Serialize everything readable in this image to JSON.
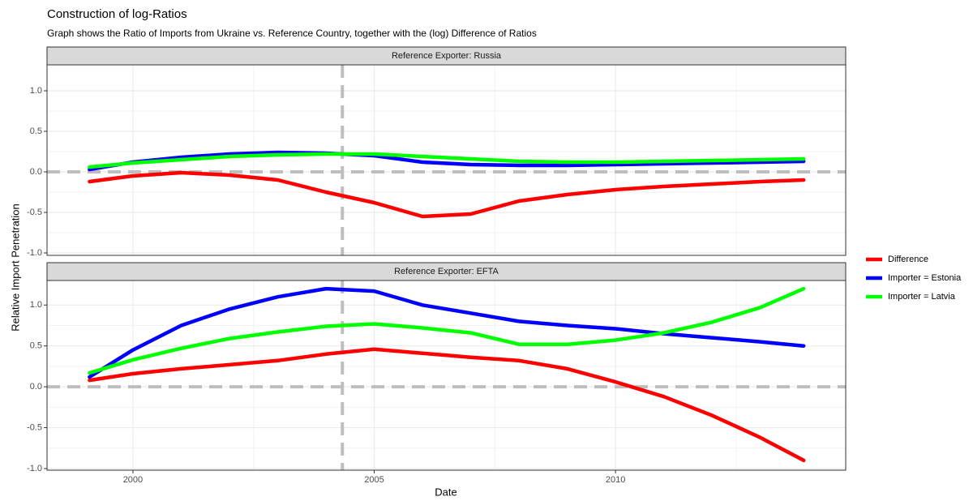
{
  "title": "Construction of log-Ratios",
  "subtitle": "Graph shows the Ratio of Imports from Ukraine vs. Reference Country, together with the (log) Difference of Ratios",
  "x_label": "Date",
  "y_label": "Relative Import Penetration",
  "chart_data": [
    {
      "type": "line",
      "strip": "Reference Exporter: Russia",
      "x": [
        1999.1,
        2000,
        2001,
        2002,
        2003,
        2004,
        2005,
        2006,
        2007,
        2008,
        2009,
        2010,
        2011,
        2012,
        2013,
        2013.9
      ],
      "series": [
        {
          "name": "Difference",
          "color": "#ff0000",
          "values": [
            -0.12,
            -0.05,
            -0.01,
            -0.04,
            -0.1,
            -0.25,
            -0.38,
            -0.55,
            -0.52,
            -0.36,
            -0.28,
            -0.22,
            -0.18,
            -0.15,
            -0.12,
            -0.1
          ]
        },
        {
          "name": "Importer = Estonia",
          "color": "#0000ff",
          "values": [
            0.03,
            0.12,
            0.18,
            0.22,
            0.24,
            0.23,
            0.2,
            0.12,
            0.09,
            0.08,
            0.08,
            0.09,
            0.1,
            0.11,
            0.12,
            0.13
          ]
        },
        {
          "name": "Importer = Latvia",
          "color": "#00ff00",
          "values": [
            0.06,
            0.11,
            0.15,
            0.19,
            0.21,
            0.22,
            0.22,
            0.19,
            0.16,
            0.13,
            0.12,
            0.12,
            0.13,
            0.14,
            0.15,
            0.16
          ]
        }
      ],
      "xlim": [
        1998.22,
        2014.77
      ],
      "ylim": [
        -1.03,
        1.32
      ],
      "xticks": [
        2000,
        2005,
        2010
      ],
      "yticks": [
        {
          "value": -1,
          "label": "-1.0"
        },
        {
          "value": -0.5,
          "label": "-0.5"
        },
        {
          "value": 0,
          "label": "0.0"
        },
        {
          "value": 0.5,
          "label": "0.5"
        },
        {
          "value": 1,
          "label": "1.0"
        }
      ],
      "x_minor_grid": [
        2002.5,
        2007.5,
        2012.5
      ],
      "y_minor_grid": [
        -0.75,
        -0.25,
        0.25,
        0.75
      ],
      "vline": 2004.34,
      "hline": 0,
      "grid": true
    },
    {
      "type": "line",
      "strip": "Reference Exporter: EFTA",
      "x": [
        1999.1,
        2000,
        2001,
        2002,
        2003,
        2004,
        2005,
        2006,
        2007,
        2008,
        2009,
        2010,
        2011,
        2012,
        2013,
        2013.9
      ],
      "series": [
        {
          "name": "Difference",
          "color": "#ff0000",
          "values": [
            0.08,
            0.16,
            0.22,
            0.27,
            0.32,
            0.4,
            0.46,
            0.41,
            0.36,
            0.32,
            0.22,
            0.06,
            -0.12,
            -0.35,
            -0.62,
            -0.9
          ]
        },
        {
          "name": "Importer = Estonia",
          "color": "#0000ff",
          "values": [
            0.12,
            0.45,
            0.75,
            0.95,
            1.1,
            1.2,
            1.17,
            1.0,
            0.9,
            0.8,
            0.75,
            0.71,
            0.65,
            0.6,
            0.55,
            0.5
          ]
        },
        {
          "name": "Importer = Latvia",
          "color": "#00ff00",
          "values": [
            0.17,
            0.33,
            0.47,
            0.59,
            0.67,
            0.74,
            0.77,
            0.72,
            0.66,
            0.52,
            0.52,
            0.57,
            0.66,
            0.79,
            0.97,
            1.2
          ]
        }
      ],
      "xlim": [
        1998.22,
        2014.77
      ],
      "ylim": [
        -1.02,
        1.3
      ],
      "xticks": [
        2000,
        2005,
        2010
      ],
      "yticks": [
        {
          "value": -1,
          "label": "-1.0"
        },
        {
          "value": -0.5,
          "label": "-0.5"
        },
        {
          "value": 0,
          "label": "0.0"
        },
        {
          "value": 0.5,
          "label": "0.5"
        },
        {
          "value": 1,
          "label": "1.0"
        }
      ],
      "x_minor_grid": [
        2002.5,
        2007.5,
        2012.5
      ],
      "y_minor_grid": [
        -0.75,
        -0.25,
        0.25,
        0.75
      ],
      "vline": 2004.34,
      "hline": 0,
      "grid": true
    }
  ]
}
